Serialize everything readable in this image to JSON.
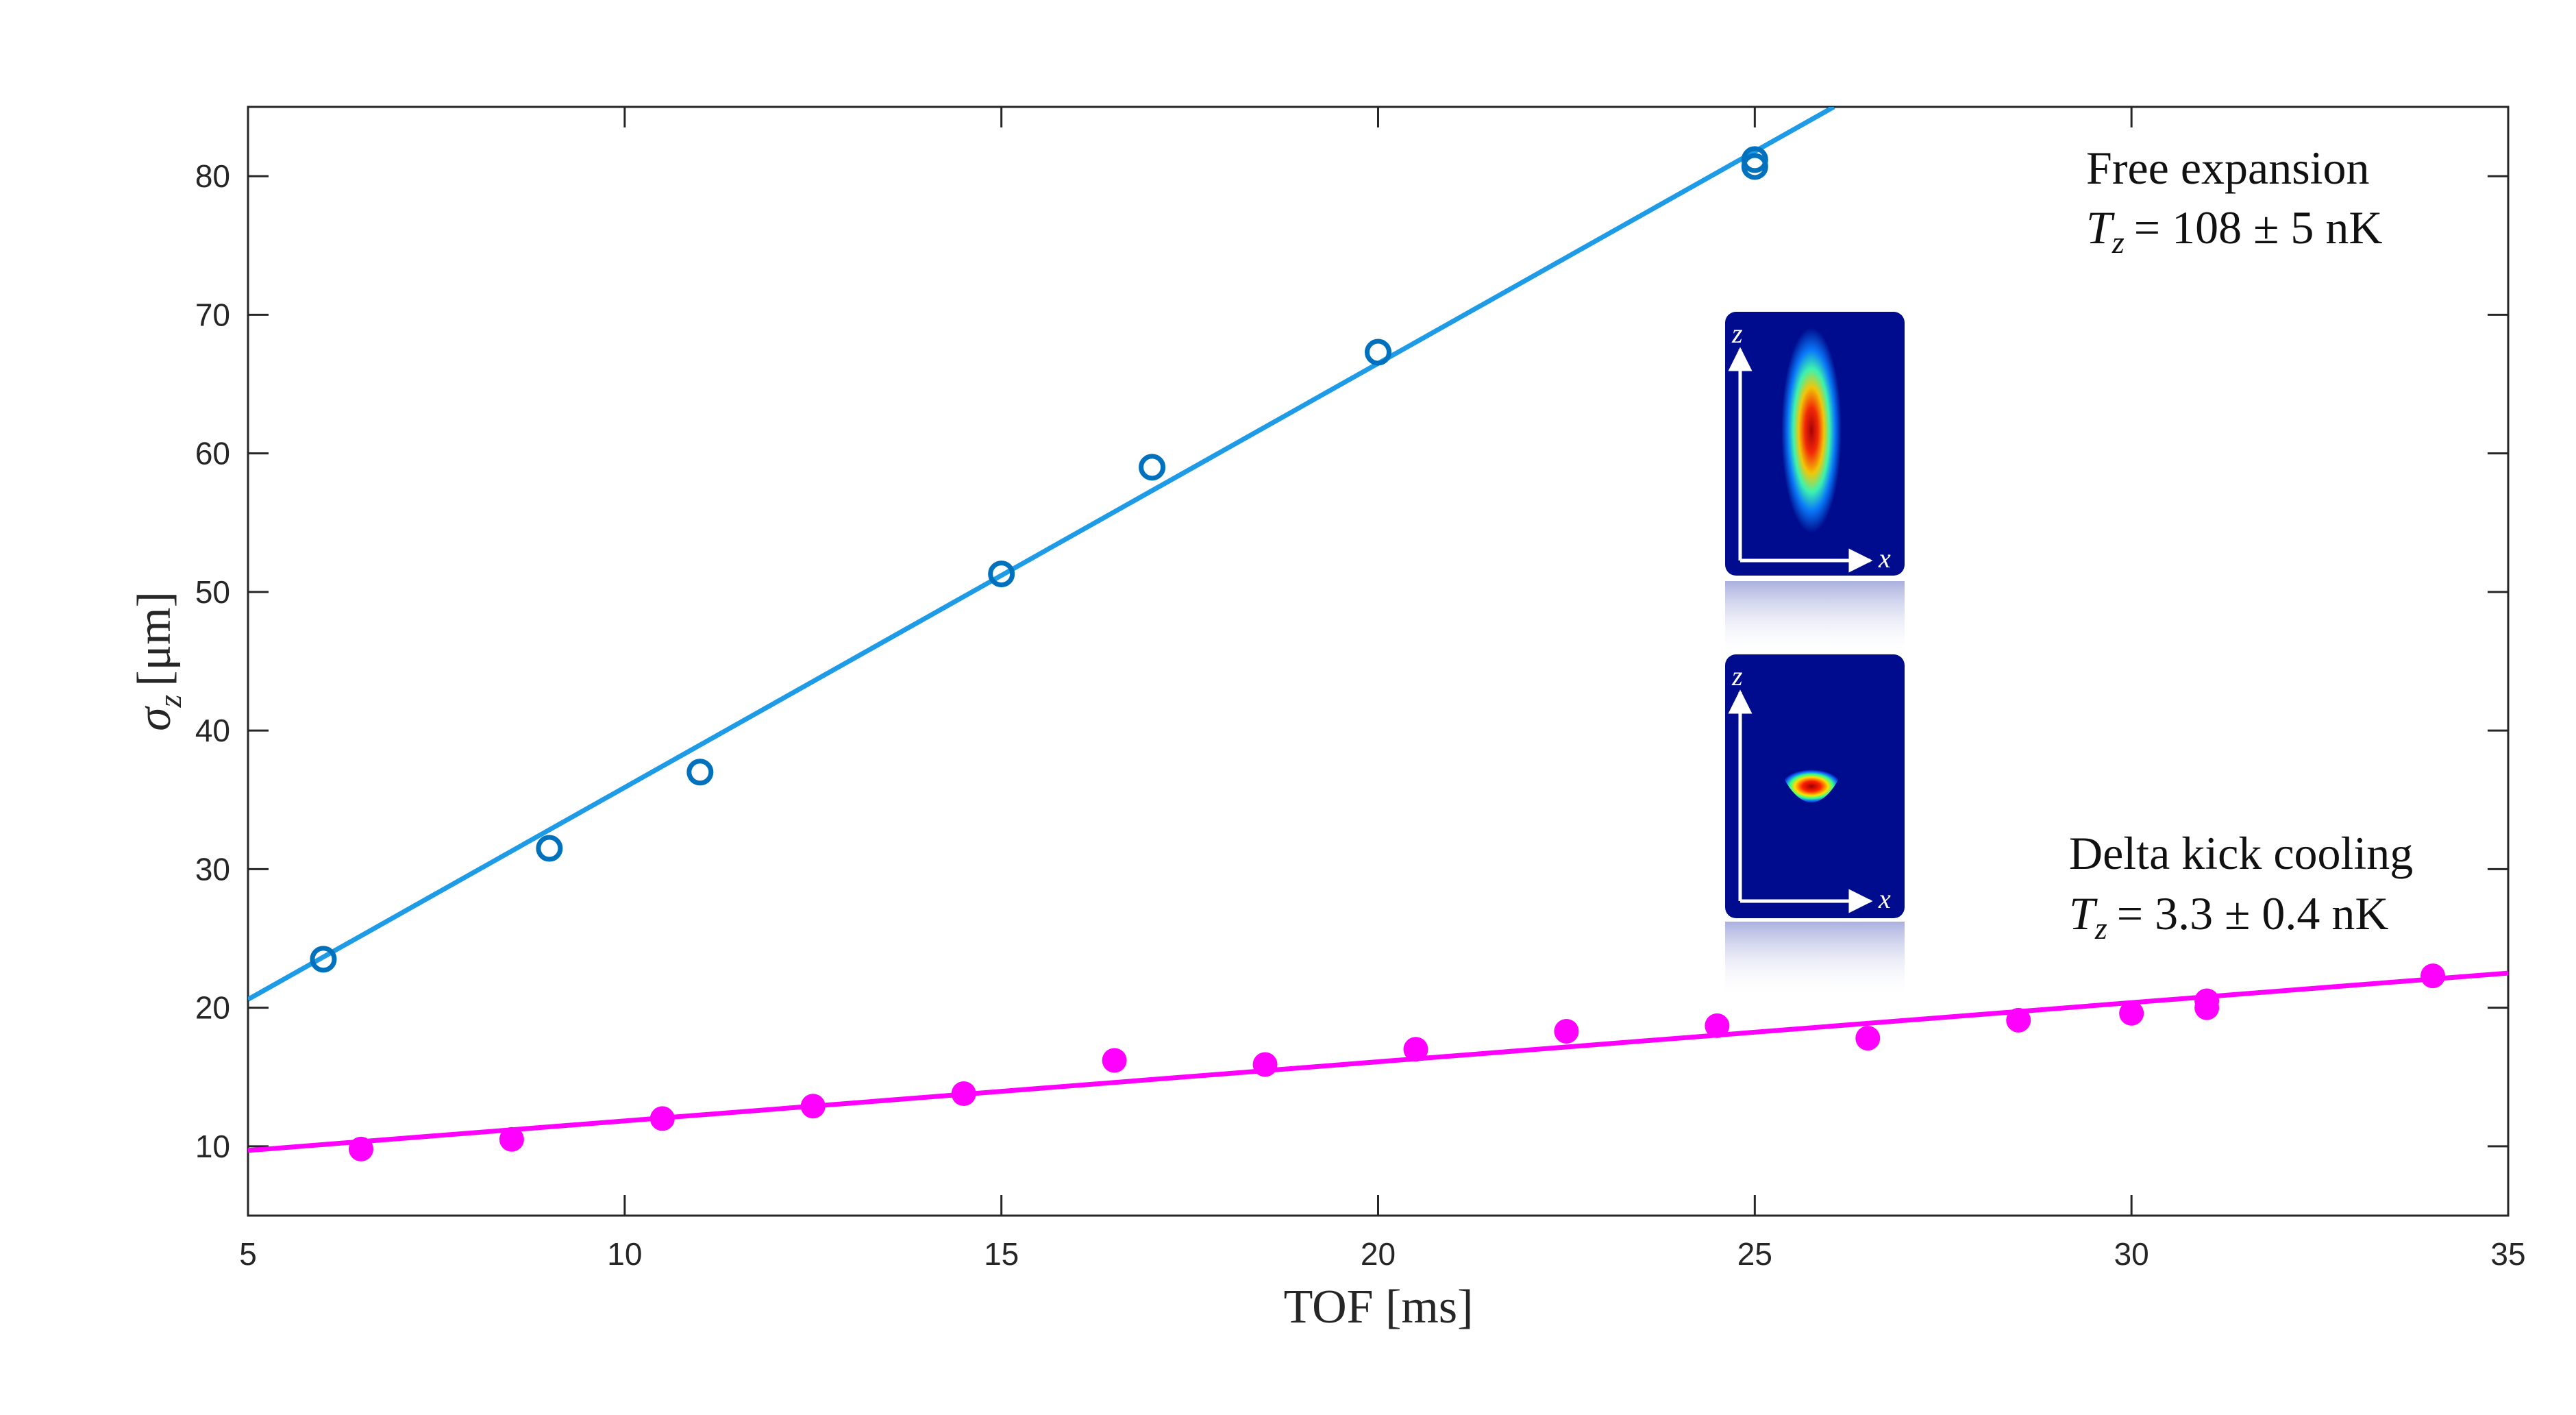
{
  "chart_data": {
    "type": "scatter",
    "title": "",
    "xlabel": "TOF [ms]",
    "ylabel_symbol": "σ",
    "ylabel_subscript": "z",
    "ylabel_unit": "[μm]",
    "xlim": [
      5,
      35
    ],
    "ylim": [
      5,
      85
    ],
    "xticks": [
      5,
      10,
      15,
      20,
      25,
      30,
      35
    ],
    "yticks": [
      10,
      20,
      30,
      40,
      50,
      60,
      70,
      80
    ],
    "grid": false,
    "series": [
      {
        "color": "#0072BD",
        "fit_color": "#1E9BE6",
        "marker": "open-circle",
        "points": [
          {
            "x": 6,
            "y": 23.5
          },
          {
            "x": 9,
            "y": 31.5
          },
          {
            "x": 11,
            "y": 37.0
          },
          {
            "x": 15,
            "y": 51.3
          },
          {
            "x": 17,
            "y": 59.0
          },
          {
            "x": 20,
            "y": 67.3
          },
          {
            "x": 25,
            "y": 80.7
          },
          {
            "x": 25,
            "y": 81.2
          }
        ],
        "fit": {
          "x": [
            5,
            26.05
          ],
          "y": [
            20.6,
            85
          ]
        }
      },
      {
        "color": "#FF00FF",
        "fit_color": "#FF00FF",
        "marker": "filled-circle",
        "points": [
          {
            "x": 6.5,
            "y": 9.8
          },
          {
            "x": 8.5,
            "y": 10.5
          },
          {
            "x": 10.5,
            "y": 12.0
          },
          {
            "x": 12.5,
            "y": 12.9
          },
          {
            "x": 14.5,
            "y": 13.8
          },
          {
            "x": 16.5,
            "y": 16.2
          },
          {
            "x": 18.5,
            "y": 15.9
          },
          {
            "x": 20.5,
            "y": 17.0
          },
          {
            "x": 22.5,
            "y": 18.3
          },
          {
            "x": 24.5,
            "y": 18.7
          },
          {
            "x": 26.5,
            "y": 17.8
          },
          {
            "x": 28.5,
            "y": 19.1
          },
          {
            "x": 30,
            "y": 19.6
          },
          {
            "x": 31,
            "y": 20.0
          },
          {
            "x": 31,
            "y": 20.5
          },
          {
            "x": 34,
            "y": 22.3
          }
        ],
        "fit": {
          "x": [
            5,
            35
          ],
          "y": [
            9.7,
            22.5
          ]
        }
      }
    ],
    "annotations": [
      {
        "line1": "Free expansion",
        "line2_symbol": "T",
        "line2_sub": "z",
        "line2_value": "= 108 ± 5 nK"
      },
      {
        "line1": "Delta kick cooling",
        "line2_symbol": "T",
        "line2_sub": "z",
        "line2_value": "= 3.3 ± 0.4 nK"
      }
    ],
    "insets": [
      {
        "axis_x": "x",
        "axis_z": "z",
        "cloud": "elongated"
      },
      {
        "axis_x": "x",
        "axis_z": "z",
        "cloud": "compact"
      }
    ]
  }
}
